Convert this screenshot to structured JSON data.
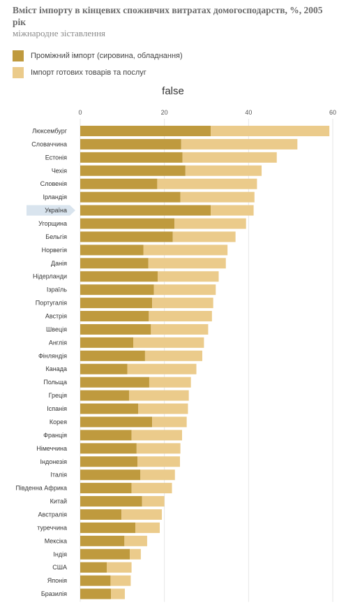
{
  "header": {
    "title": "Вміст імпорту в кінцевих споживчих витратах домогосподарств, %, 2005 рік",
    "subtitle": "міжнародне зіставлення"
  },
  "colors": {
    "intermediate": "#bf9a3e",
    "finished": "#ebcb8b",
    "highlight": "#d9e4ee",
    "grid": "#e6e6e6"
  },
  "chart_data": {
    "type": "bar",
    "orientation": "horizontal",
    "stacked": true,
    "title": "false",
    "xlim": [
      0,
      60
    ],
    "xticks": [
      0,
      20,
      40,
      60
    ],
    "legend_position": "top-left",
    "highlight_category": "Україна",
    "categories": [
      "Люксембург",
      "Словаччина",
      "Естонія",
      "Чехія",
      "Словенія",
      "Ірландія",
      "Україна",
      "Угорщина",
      "Бельгія",
      "Норвегія",
      "Данія",
      "Нідерланди",
      "Ізраїль",
      "Португалія",
      "Австрія",
      "Швеція",
      "Англія",
      "Фінляндія",
      "Канада",
      "Польща",
      "Греція",
      "Іспанія",
      "Корея",
      "Франція",
      "Німеччина",
      "Індонезія",
      "Італія",
      "Південна Африка",
      "Китай",
      "Австралія",
      "туреччина",
      "Мексіка",
      "Індія",
      "США",
      "Японія",
      "Бразилія"
    ],
    "series": [
      {
        "name": "Проміжний імпорт (сировина, обладнання)",
        "values": [
          31,
          24,
          24.3,
          25,
          18.3,
          23.8,
          31,
          22.4,
          22,
          15,
          16.2,
          18.4,
          17.5,
          17.1,
          16.3,
          16.8,
          12.6,
          15.4,
          11.2,
          16.4,
          11.6,
          13.8,
          17.1,
          12.2,
          13.4,
          13.6,
          14.3,
          12.2,
          14.7,
          9.8,
          13.1,
          10.5,
          11.8,
          6.3,
          7.2,
          7.3
        ]
      },
      {
        "name": "Імпорт готових товарів та послуг",
        "values": [
          28.2,
          27.6,
          22.4,
          18.1,
          23.7,
          17.6,
          10.2,
          17,
          14.9,
          20,
          18.4,
          14.5,
          14.7,
          14.5,
          15,
          13.6,
          16.8,
          13.6,
          16.4,
          9.9,
          14.2,
          11.8,
          8.2,
          12,
          10.4,
          10.1,
          8.2,
          9.6,
          5.3,
          9.6,
          5.8,
          5.4,
          2.6,
          5.9,
          4.8,
          3.3
        ]
      }
    ]
  }
}
